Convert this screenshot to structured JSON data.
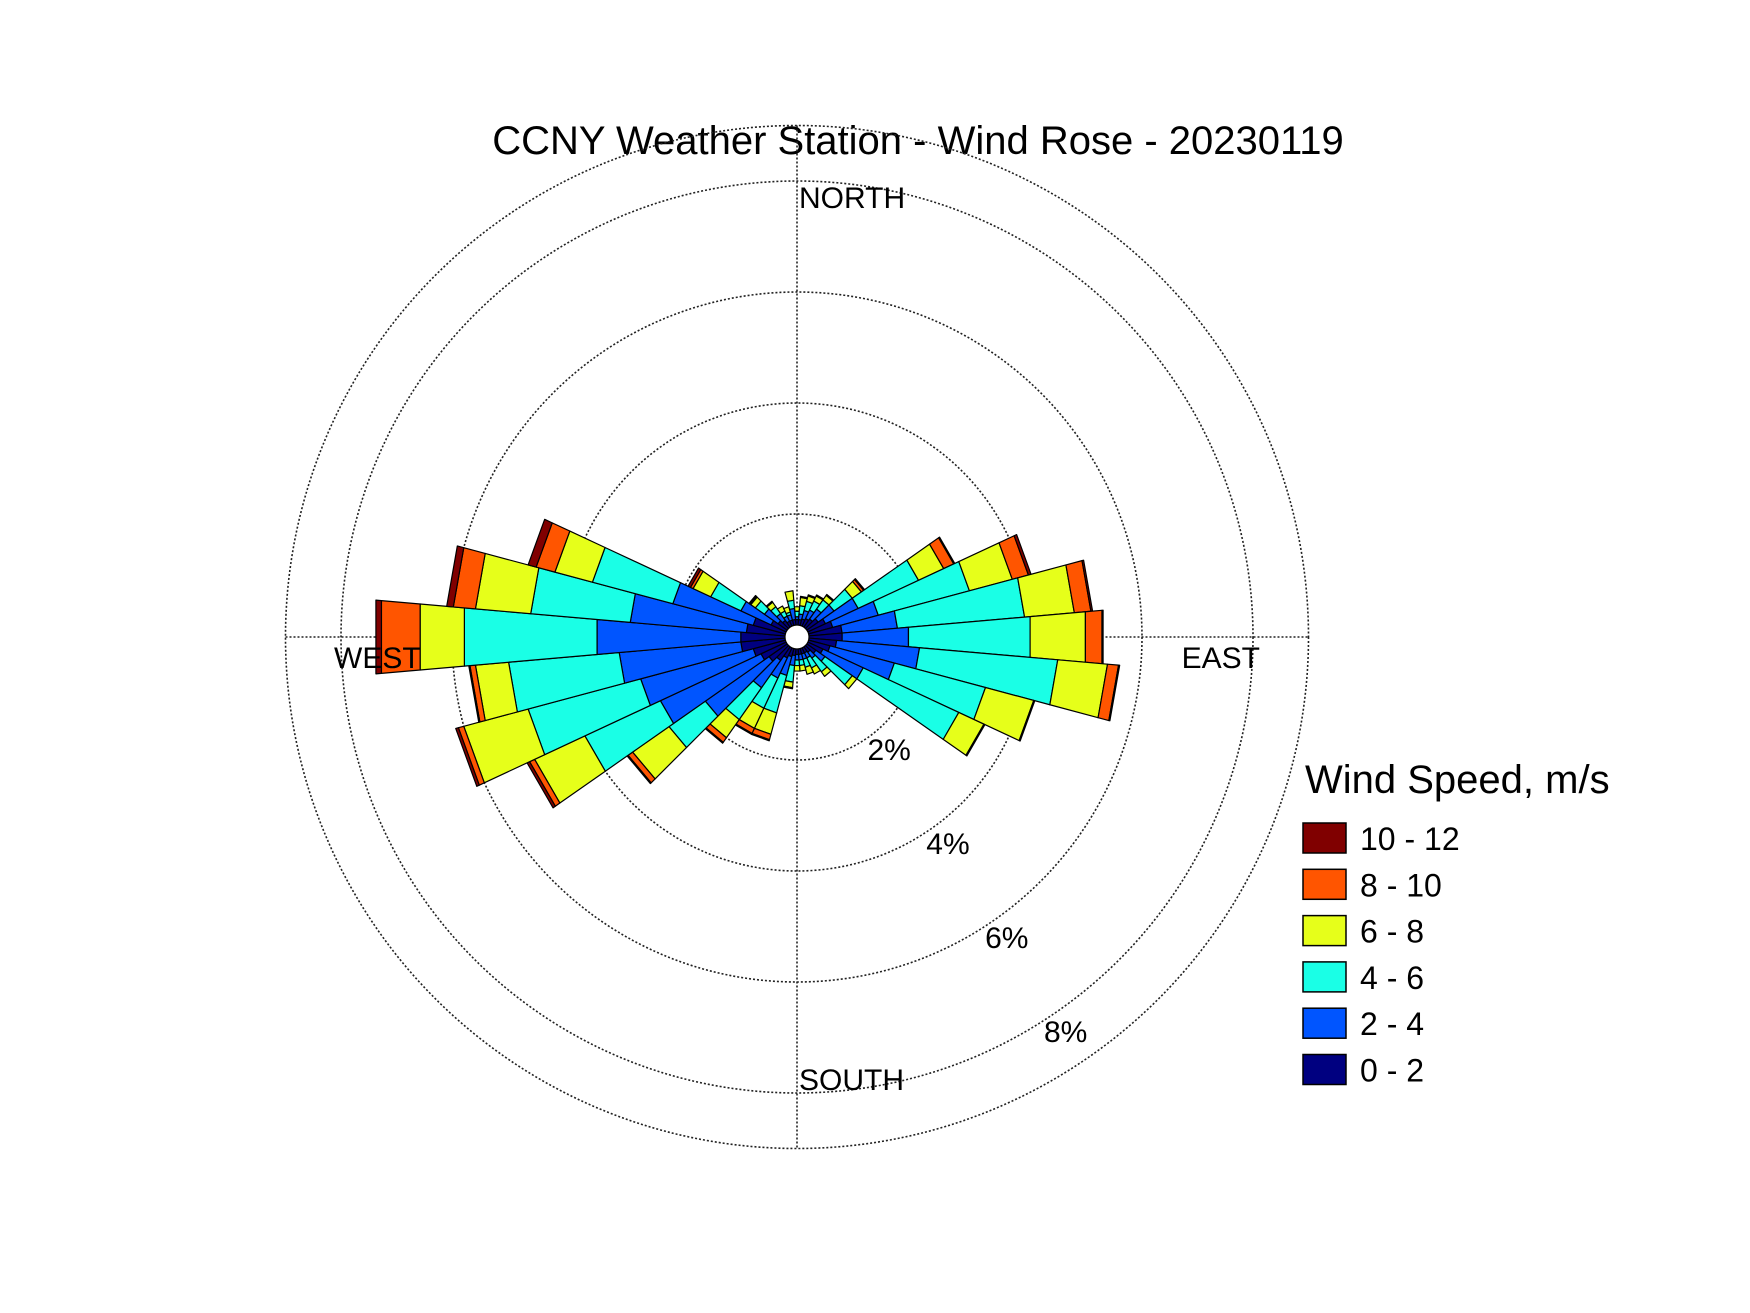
{
  "chart_data": {
    "type": "wind-rose",
    "title": "CCNY Weather Station - Wind Rose - 20230119",
    "direction_labels": {
      "north": "NORTH",
      "south": "SOUTH",
      "east": "EAST",
      "west": "WEST"
    },
    "rings": [
      {
        "value": 2,
        "label": "2%"
      },
      {
        "value": 4,
        "label": "4%"
      },
      {
        "value": 6,
        "label": "6%"
      },
      {
        "value": 8,
        "label": "8%"
      }
    ],
    "outer_ring_value": 9,
    "legend": {
      "title": "Wind Speed, m/s",
      "placement": "right"
    },
    "speed_bins": [
      {
        "label": "0 - 2",
        "color": "#000080"
      },
      {
        "label": "2 - 4",
        "color": "#0055ff"
      },
      {
        "label": "4 - 6",
        "color": "#1affe6"
      },
      {
        "label": "6 - 8",
        "color": "#e6ff1a"
      },
      {
        "label": "8 - 10",
        "color": "#ff5500"
      },
      {
        "label": "10 - 12",
        "color": "#800000"
      }
    ],
    "sector_width_deg": 10,
    "sectors": [
      {
        "direction": 0,
        "cumulative": [
          0.1,
          0.15,
          0.25,
          0.33,
          0.33,
          0.33
        ]
      },
      {
        "direction": 10,
        "cumulative": [
          0.1,
          0.2,
          0.35,
          0.5,
          0.52,
          0.52
        ]
      },
      {
        "direction": 20,
        "cumulative": [
          0.12,
          0.28,
          0.45,
          0.55,
          0.57,
          0.57
        ]
      },
      {
        "direction": 30,
        "cumulative": [
          0.15,
          0.32,
          0.5,
          0.6,
          0.62,
          0.62
        ]
      },
      {
        "direction": 40,
        "cumulative": [
          0.18,
          0.4,
          0.6,
          0.7,
          0.72,
          0.72
        ]
      },
      {
        "direction": 50,
        "cumulative": [
          0.25,
          0.6,
          1.0,
          1.2,
          1.25,
          1.27
        ]
      },
      {
        "direction": 60,
        "cumulative": [
          0.35,
          1.0,
          2.2,
          2.7,
          2.9,
          2.92
        ]
      },
      {
        "direction": 70,
        "cumulative": [
          0.45,
          1.3,
          3.0,
          3.8,
          4.1,
          4.15
        ]
      },
      {
        "direction": 80,
        "cumulative": [
          0.6,
          1.6,
          3.9,
          4.8,
          5.1,
          5.13
        ]
      },
      {
        "direction": 90,
        "cumulative": [
          0.6,
          1.8,
          4.0,
          5.0,
          5.3,
          5.32
        ]
      },
      {
        "direction": 100,
        "cumulative": [
          0.5,
          2.0,
          4.5,
          5.4,
          5.6,
          5.62
        ]
      },
      {
        "direction": 110,
        "cumulative": [
          0.4,
          1.6,
          3.3,
          4.2,
          4.22,
          4.22
        ]
      },
      {
        "direction": 120,
        "cumulative": [
          0.3,
          1.1,
          3.0,
          3.5,
          3.52,
          3.52
        ]
      },
      {
        "direction": 130,
        "cumulative": [
          0.2,
          0.4,
          1.0,
          1.1,
          1.1,
          1.1
        ]
      },
      {
        "direction": 140,
        "cumulative": [
          0.12,
          0.25,
          0.55,
          0.65,
          0.65,
          0.65
        ]
      },
      {
        "direction": 150,
        "cumulative": [
          0.1,
          0.2,
          0.4,
          0.52,
          0.52,
          0.52
        ]
      },
      {
        "direction": 160,
        "cumulative": [
          0.1,
          0.2,
          0.35,
          0.48,
          0.48,
          0.48
        ]
      },
      {
        "direction": 170,
        "cumulative": [
          0.1,
          0.2,
          0.3,
          0.4,
          0.4,
          0.4
        ]
      },
      {
        "direction": 180,
        "cumulative": [
          0.1,
          0.2,
          0.3,
          0.4,
          0.4,
          0.4
        ]
      },
      {
        "direction": 190,
        "cumulative": [
          0.12,
          0.3,
          0.6,
          0.7,
          0.72,
          0.72
        ]
      },
      {
        "direction": 200,
        "cumulative": [
          0.15,
          0.5,
          1.2,
          1.6,
          1.7,
          1.72
        ]
      },
      {
        "direction": 210,
        "cumulative": [
          0.2,
          0.6,
          1.2,
          1.6,
          1.7,
          1.72
        ]
      },
      {
        "direction": 220,
        "cumulative": [
          0.3,
          0.9,
          1.6,
          2.0,
          2.1,
          2.12
        ]
      },
      {
        "direction": 230,
        "cumulative": [
          0.4,
          1.8,
          2.6,
          3.4,
          3.5,
          3.52
        ]
      },
      {
        "direction": 240,
        "cumulative": [
          0.5,
          2.5,
          4.0,
          5.0,
          5.1,
          5.15
        ]
      },
      {
        "direction": 250,
        "cumulative": [
          0.6,
          2.7,
          4.8,
          6.0,
          6.1,
          6.15
        ]
      },
      {
        "direction": 260,
        "cumulative": [
          0.8,
          3.0,
          5.0,
          5.6,
          5.7,
          5.72
        ]
      },
      {
        "direction": 270,
        "cumulative": [
          0.8,
          3.4,
          5.8,
          6.6,
          7.3,
          7.4
        ]
      },
      {
        "direction": 280,
        "cumulative": [
          0.7,
          2.8,
          4.6,
          5.6,
          6.0,
          6.12
        ]
      },
      {
        "direction": 290,
        "cumulative": [
          0.6,
          2.1,
          3.6,
          4.3,
          4.65,
          4.8
        ]
      },
      {
        "direction": 300,
        "cumulative": [
          0.3,
          0.9,
          1.5,
          1.85,
          1.9,
          1.95
        ]
      },
      {
        "direction": 310,
        "cumulative": [
          0.2,
          0.5,
          0.7,
          0.8,
          0.82,
          0.84
        ]
      },
      {
        "direction": 320,
        "cumulative": [
          0.15,
          0.3,
          0.45,
          0.55,
          0.57,
          0.57
        ]
      },
      {
        "direction": 330,
        "cumulative": [
          0.1,
          0.2,
          0.3,
          0.4,
          0.4,
          0.4
        ]
      },
      {
        "direction": 340,
        "cumulative": [
          0.1,
          0.2,
          0.25,
          0.35,
          0.35,
          0.35
        ]
      },
      {
        "direction": 350,
        "cumulative": [
          0.1,
          0.3,
          0.45,
          0.62,
          0.62,
          0.62
        ]
      }
    ]
  }
}
